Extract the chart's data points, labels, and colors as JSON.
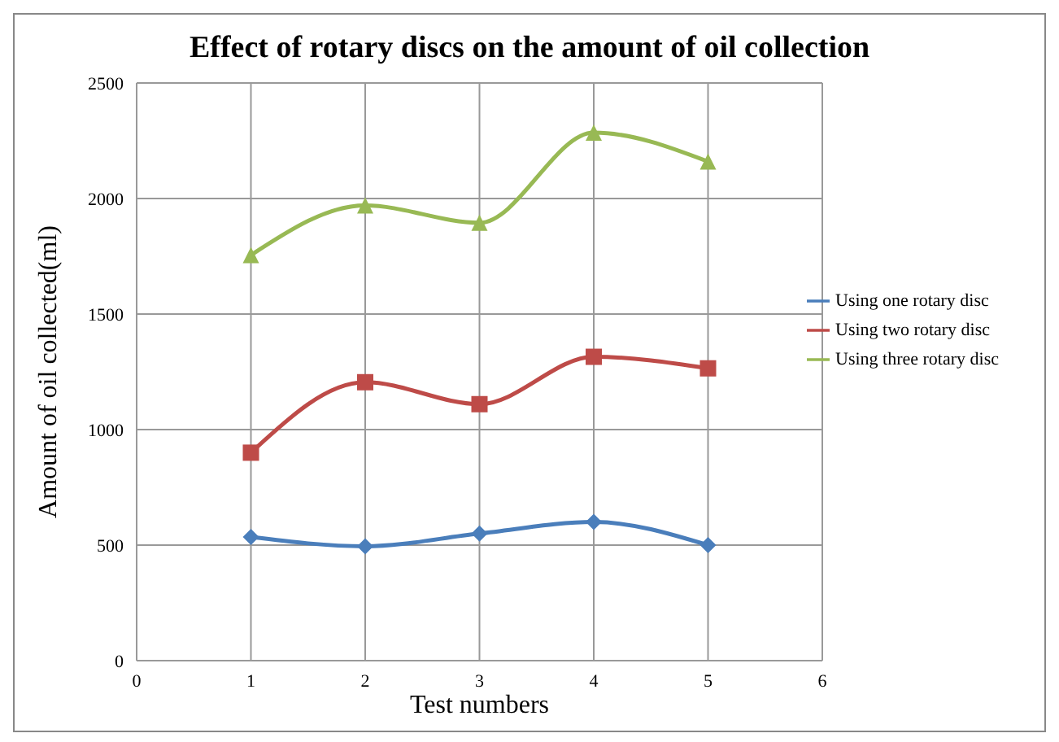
{
  "chart_data": {
    "type": "line",
    "title": "Effect of rotary discs on the amount of oil collection",
    "xlabel": "Test numbers",
    "ylabel": "Amount of oil collected(ml)",
    "x": [
      1,
      2,
      3,
      4,
      5
    ],
    "series": [
      {
        "name": "Using one rotary disc",
        "color": "#4a7ebb",
        "marker": "diamond",
        "values": [
          535,
          495,
          550,
          600,
          500
        ]
      },
      {
        "name": "Using two rotary disc",
        "color": "#be4b48",
        "marker": "square",
        "values": [
          900,
          1205,
          1110,
          1315,
          1265
        ]
      },
      {
        "name": "Using three rotary disc",
        "color": "#98b954",
        "marker": "triangle",
        "values": [
          1755,
          1970,
          1895,
          2285,
          2160
        ]
      }
    ],
    "xlim": [
      0,
      6
    ],
    "xticks": [
      0,
      1,
      2,
      3,
      4,
      5,
      6
    ],
    "ylim": [
      0,
      2500
    ],
    "yticks": [
      0,
      500,
      1000,
      1500,
      2000,
      2500
    ],
    "grid": true,
    "legend": "right"
  }
}
